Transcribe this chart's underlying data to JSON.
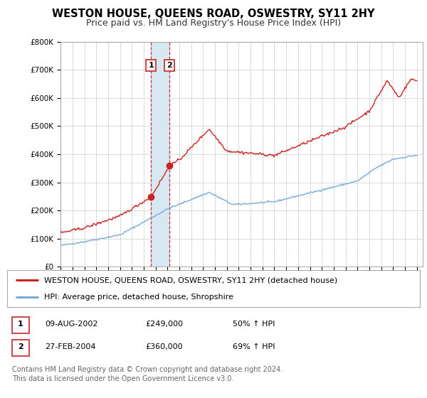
{
  "title": "WESTON HOUSE, QUEENS ROAD, OSWESTRY, SY11 2HY",
  "subtitle": "Price paid vs. HM Land Registry's House Price Index (HPI)",
  "ylim": [
    0,
    800000
  ],
  "yticks": [
    0,
    100000,
    200000,
    300000,
    400000,
    500000,
    600000,
    700000,
    800000
  ],
  "ytick_labels": [
    "£0",
    "£100K",
    "£200K",
    "£300K",
    "£400K",
    "£500K",
    "£600K",
    "£700K",
    "£800K"
  ],
  "xlim_start": 1995.0,
  "xlim_end": 2025.5,
  "sale1_date": 2002.608,
  "sale1_price": 249000,
  "sale1_display": "09-AUG-2002",
  "sale1_amount": "£249,000",
  "sale1_hpi": "50% ↑ HPI",
  "sale2_date": 2004.16,
  "sale2_price": 360000,
  "sale2_display": "27-FEB-2004",
  "sale2_amount": "£360,000",
  "sale2_hpi": "69% ↑ HPI",
  "hpi_line_color": "#7aaadd",
  "property_line_color": "#cc2222",
  "shade_color": "#d8e8f0",
  "background_color": "#ffffff",
  "grid_color": "#cccccc",
  "legend_line1": "WESTON HOUSE, QUEENS ROAD, OSWESTRY, SY11 2HY (detached house)",
  "legend_line2": "HPI: Average price, detached house, Shropshire",
  "footer_line1": "Contains HM Land Registry data © Crown copyright and database right 2024.",
  "footer_line2": "This data is licensed under the Open Government Licence v3.0.",
  "title_fontsize": 10.5,
  "subtitle_fontsize": 9,
  "tick_fontsize": 7.5,
  "legend_fontsize": 8,
  "table_fontsize": 8,
  "footer_fontsize": 7
}
